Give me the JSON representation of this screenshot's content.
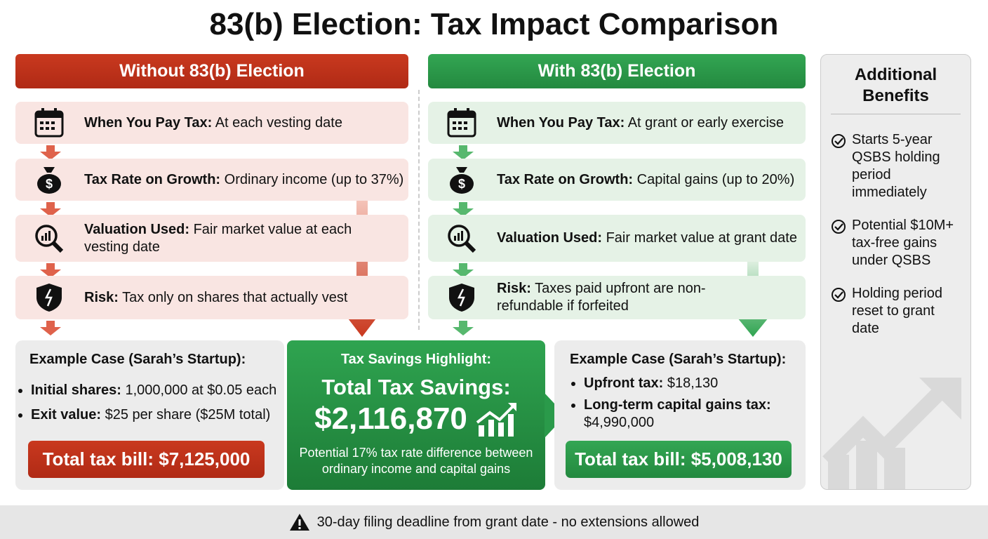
{
  "title": "83(b) Election: Tax Impact Comparison",
  "without": {
    "header": "Without 83(b) Election",
    "rows": [
      {
        "label": "When You Pay Tax:",
        "text": "At each vesting date"
      },
      {
        "label": "Tax Rate on Growth:",
        "text": "Ordinary income (up to 37%)"
      },
      {
        "label": "Valuation Used:",
        "text": "Fair market value at each vesting date"
      },
      {
        "label": "Risk:",
        "text": "Tax only on shares that actually vest"
      }
    ],
    "example": {
      "title": "Example Case (Sarah’s Startup):",
      "bullets": [
        {
          "label": "Initial shares:",
          "text": "1,000,000 at $0.05 each"
        },
        {
          "label": "Exit value:",
          "text": "$25 per share ($25M total)"
        }
      ],
      "total": "Total tax bill: $7,125,000"
    }
  },
  "with": {
    "header": "With 83(b) Election",
    "rows": [
      {
        "label": "When You Pay Tax:",
        "text": "At grant or early exercise"
      },
      {
        "label": "Tax Rate on Growth:",
        "text": "Capital gains (up to 20%)"
      },
      {
        "label": "Valuation Used:",
        "text": "Fair market value at grant date"
      },
      {
        "label": "Risk:",
        "text": "Taxes paid upfront are non-refundable if forfeited"
      }
    ],
    "example": {
      "title": "Example Case (Sarah’s Startup):",
      "bullets": [
        {
          "label": "Upfront tax:",
          "text": "$18,130"
        },
        {
          "label": "Long-term capital gains tax:",
          "text": "$4,990,000"
        }
      ],
      "total": "Total tax bill: $5,008,130"
    }
  },
  "highlight": {
    "heading": "Tax Savings Highlight:",
    "label": "Total Tax Savings:",
    "amount": "$2,116,870",
    "note": "Potential 17% tax rate difference between ordinary income and capital gains"
  },
  "benefits": {
    "title": "Additional Benefits",
    "items": [
      "Starts 5-year QSBS holding period immediately",
      "Potential $10M+ tax-free gains under QSBS",
      "Holding period reset to grant date"
    ]
  },
  "footer": "30-day filing deadline from grant date - no extensions allowed"
}
